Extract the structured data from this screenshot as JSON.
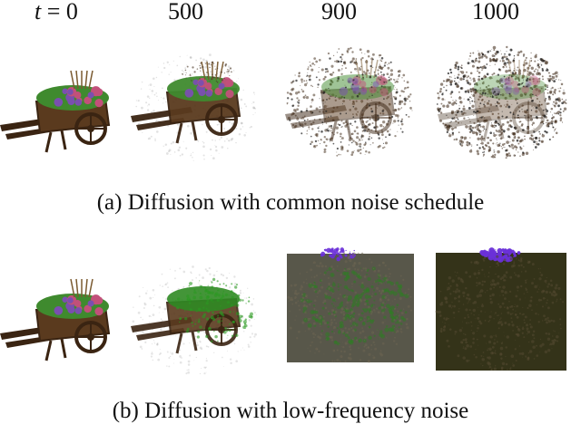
{
  "header": {
    "t_symbol": "t",
    "t_eq": "= 0",
    "labels": [
      "500",
      "900",
      "1000"
    ]
  },
  "rows": [
    {
      "caption": "(a) Diffusion with common noise schedule",
      "panels": [
        {
          "mode": "clean"
        },
        {
          "mode": "light"
        },
        {
          "mode": "heavy"
        },
        {
          "mode": "heavier"
        }
      ]
    },
    {
      "caption": "(b) Diffusion with low-frequency noise",
      "panels": [
        {
          "mode": "clean"
        },
        {
          "mode": "green"
        },
        {
          "mode": "block"
        },
        {
          "mode": "cube"
        }
      ]
    }
  ],
  "colors": {
    "wood": "#5a3a1e",
    "wood_dark": "#3a2412",
    "flowers_green": "#3f8a2e",
    "flower_pink": "#c2507a",
    "flower_purple": "#7a4fb0",
    "noise_brown": "#4a3624",
    "cube_purple": "#6a30d8"
  }
}
